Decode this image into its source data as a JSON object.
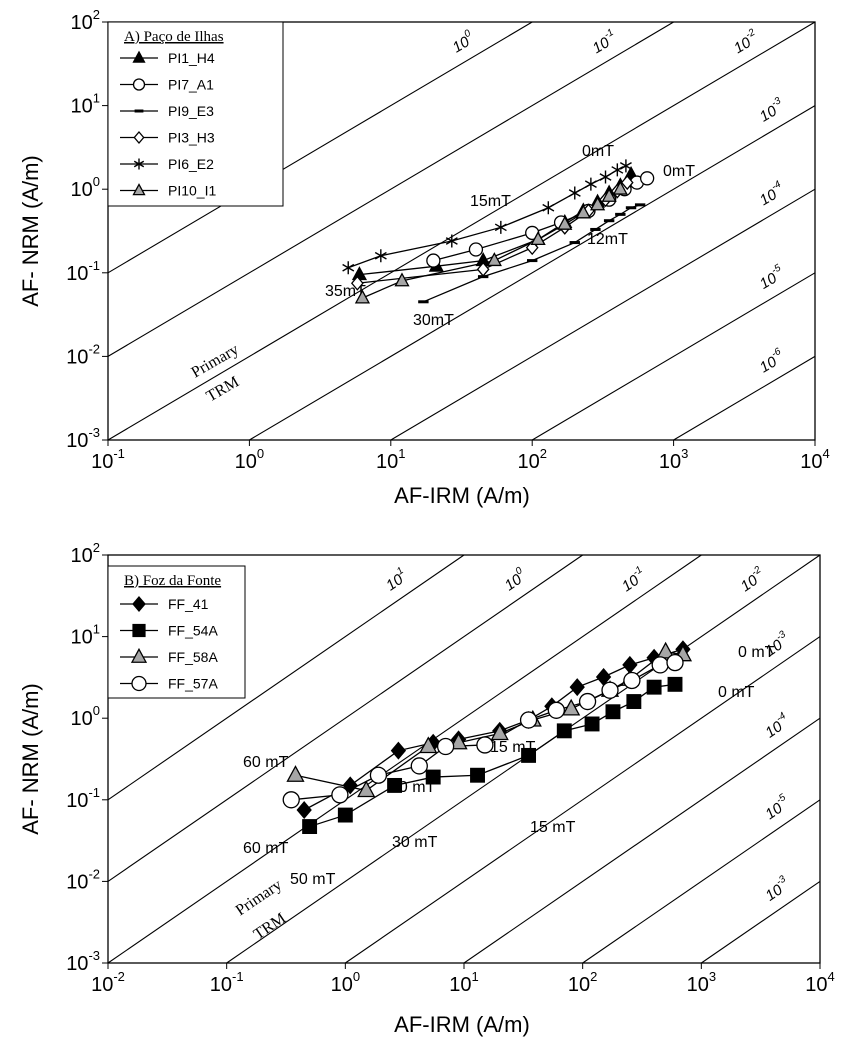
{
  "chart_data": [
    {
      "type": "line",
      "title": "A) Paço de Ilhas",
      "x_label": "AF-IRM (A/m)",
      "y_label": "AF- NRM (A/m)",
      "xscale": "log",
      "yscale": "log",
      "xlim": [
        0.1,
        10000
      ],
      "ylim": [
        0.001,
        100
      ],
      "xticks": [
        {
          "value": 0.1,
          "label": "10",
          "exponent": "-1"
        },
        {
          "value": 1,
          "label": "10",
          "exponent": "0"
        },
        {
          "value": 10,
          "label": "10",
          "exponent": "1"
        },
        {
          "value": 100,
          "label": "10",
          "exponent": "2"
        },
        {
          "value": 1000,
          "label": "10",
          "exponent": "3"
        },
        {
          "value": 10000,
          "label": "10",
          "exponent": "4"
        }
      ],
      "yticks": [
        {
          "value": 0.001,
          "label": "10",
          "exponent": "-3"
        },
        {
          "value": 0.01,
          "label": "10",
          "exponent": "-2"
        },
        {
          "value": 0.1,
          "label": "10",
          "exponent": "-1"
        },
        {
          "value": 1,
          "label": "10",
          "exponent": "0"
        },
        {
          "value": 10,
          "label": "10",
          "exponent": "1"
        },
        {
          "value": 100,
          "label": "10",
          "exponent": "2"
        }
      ],
      "ratio_lines": [
        {
          "value": 1,
          "label": "10",
          "exponent": "0"
        },
        {
          "value": 0.1,
          "label": "10",
          "exponent": "-1"
        },
        {
          "value": 0.01,
          "label": "10",
          "exponent": "-2"
        },
        {
          "value": 0.001,
          "label": "10",
          "exponent": "-3"
        },
        {
          "value": 0.0001,
          "label": "10",
          "exponent": "-4"
        },
        {
          "value": 1e-05,
          "label": "10",
          "exponent": "-5"
        },
        {
          "value": 1e-06,
          "label": "10",
          "exponent": "-6"
        }
      ],
      "series": [
        {
          "name": "PI1_H4",
          "marker": "triangle",
          "color": "#000000",
          "x": [
            6.0,
            21,
            45,
            110,
            170,
            230,
            290,
            350,
            420,
            500
          ],
          "values": [
            0.095,
            0.12,
            0.14,
            0.25,
            0.4,
            0.55,
            0.7,
            0.9,
            1.1,
            1.5
          ]
        },
        {
          "name": "PI7_A1",
          "marker": "circle",
          "color": "#ffffff",
          "x": [
            20,
            40,
            100,
            160,
            250,
            350,
            450,
            550,
            650
          ],
          "values": [
            0.14,
            0.19,
            0.3,
            0.4,
            0.55,
            0.75,
            1.0,
            1.2,
            1.35
          ]
        },
        {
          "name": "PI9_E3",
          "marker": "dash",
          "color": "#000000",
          "x": [
            17,
            45,
            100,
            200,
            280,
            350,
            420,
            500,
            580
          ],
          "values": [
            0.045,
            0.09,
            0.14,
            0.23,
            0.33,
            0.42,
            0.5,
            0.6,
            0.65
          ]
        },
        {
          "name": "PI3_H3",
          "marker": "diamond",
          "color": "#ffffff",
          "x": [
            5.8,
            45,
            100,
            170,
            250,
            330,
            400,
            470
          ],
          "values": [
            0.075,
            0.11,
            0.2,
            0.35,
            0.55,
            0.75,
            0.95,
            1.2
          ]
        },
        {
          "name": "PI6_E2",
          "marker": "asterisk",
          "color": "#000000",
          "x": [
            5,
            8.5,
            27,
            60,
            130,
            200,
            260,
            330,
            400,
            460
          ],
          "values": [
            0.115,
            0.16,
            0.24,
            0.35,
            0.6,
            0.9,
            1.15,
            1.4,
            1.7,
            1.9
          ]
        },
        {
          "name": "PI10_I1",
          "marker": "triangle",
          "color": "#a6a6a6",
          "x": [
            6.3,
            12,
            54,
            110,
            170,
            230,
            290,
            350,
            420
          ],
          "values": [
            0.05,
            0.08,
            0.14,
            0.25,
            0.38,
            0.52,
            0.65,
            0.82,
            1.0
          ]
        }
      ],
      "annotations": [
        "0mT",
        "0mT",
        "15mT",
        "12mT",
        "35mT",
        "30mT",
        "Primary",
        "TRM"
      ]
    },
    {
      "type": "line",
      "title": "B) Foz da Fonte",
      "x_label": "AF-IRM (A/m)",
      "y_label": "AF- NRM (A/m)",
      "xscale": "log",
      "yscale": "log",
      "xlim": [
        0.01,
        10000
      ],
      "ylim": [
        0.001,
        100
      ],
      "xticks": [
        {
          "value": 0.01,
          "label": "10",
          "exponent": "-2"
        },
        {
          "value": 0.1,
          "label": "10",
          "exponent": "-1"
        },
        {
          "value": 1,
          "label": "10",
          "exponent": "0"
        },
        {
          "value": 10,
          "label": "10",
          "exponent": "1"
        },
        {
          "value": 100,
          "label": "10",
          "exponent": "2"
        },
        {
          "value": 1000,
          "label": "10",
          "exponent": "3"
        },
        {
          "value": 10000,
          "label": "10",
          "exponent": "4"
        }
      ],
      "yticks": [
        {
          "value": 0.001,
          "label": "10",
          "exponent": "-3"
        },
        {
          "value": 0.01,
          "label": "10",
          "exponent": "-2"
        },
        {
          "value": 0.1,
          "label": "10",
          "exponent": "-1"
        },
        {
          "value": 1,
          "label": "10",
          "exponent": "0"
        },
        {
          "value": 10,
          "label": "10",
          "exponent": "1"
        },
        {
          "value": 100,
          "label": "10",
          "exponent": "2"
        }
      ],
      "ratio_lines": [
        {
          "value": 10,
          "label": "10",
          "exponent": "1"
        },
        {
          "value": 1,
          "label": "10",
          "exponent": "0"
        },
        {
          "value": 0.1,
          "label": "10",
          "exponent": "-1"
        },
        {
          "value": 0.01,
          "label": "10",
          "exponent": "-2"
        },
        {
          "value": 0.001,
          "label": "10",
          "exponent": "-3"
        },
        {
          "value": 0.0001,
          "label": "10",
          "exponent": "-4"
        },
        {
          "value": 1e-05,
          "label": "10",
          "exponent": "-5"
        },
        {
          "value": 1e-06,
          "label": "10",
          "exponent": "-3"
        }
      ],
      "series": [
        {
          "name": "FF_41",
          "marker": "diamond",
          "color": "#000000",
          "x": [
            0.45,
            1.1,
            2.8,
            5.5,
            9,
            20,
            35,
            55,
            90,
            150,
            250,
            400,
            700
          ],
          "values": [
            0.075,
            0.15,
            0.4,
            0.5,
            0.55,
            0.7,
            0.95,
            1.4,
            2.4,
            3.2,
            4.5,
            5.5,
            7.0
          ]
        },
        {
          "name": "FF_54A",
          "marker": "square",
          "color": "#000000",
          "x": [
            0.5,
            1.0,
            2.6,
            5.5,
            13,
            35,
            70,
            120,
            180,
            270,
            400,
            600
          ],
          "values": [
            0.047,
            0.065,
            0.15,
            0.19,
            0.2,
            0.35,
            0.7,
            0.85,
            1.2,
            1.6,
            2.4,
            2.6
          ]
        },
        {
          "name": "FF_58A",
          "marker": "triangle",
          "color": "#a6a6a6",
          "x": [
            0.38,
            1.5,
            5,
            9,
            20,
            38,
            80,
            170,
            250,
            500,
            700
          ],
          "values": [
            0.2,
            0.13,
            0.45,
            0.5,
            0.65,
            0.95,
            1.3,
            2.2,
            3.0,
            6.5,
            6.0
          ]
        },
        {
          "name": "FF_57A",
          "marker": "circle",
          "color": "#ffffff",
          "x": [
            0.35,
            0.9,
            1.9,
            4.2,
            7,
            15,
            35,
            60,
            110,
            170,
            260,
            450,
            600
          ],
          "values": [
            0.1,
            0.115,
            0.2,
            0.26,
            0.45,
            0.47,
            0.95,
            1.25,
            1.6,
            2.2,
            2.9,
            4.5,
            4.8
          ]
        }
      ],
      "annotations": [
        "0 mT",
        "0 mT",
        "15 mT",
        "30 mT",
        "60 mT",
        "60 mT",
        "30 mT",
        "50 mT",
        "15 mT",
        "Primary",
        "TRM"
      ]
    }
  ]
}
